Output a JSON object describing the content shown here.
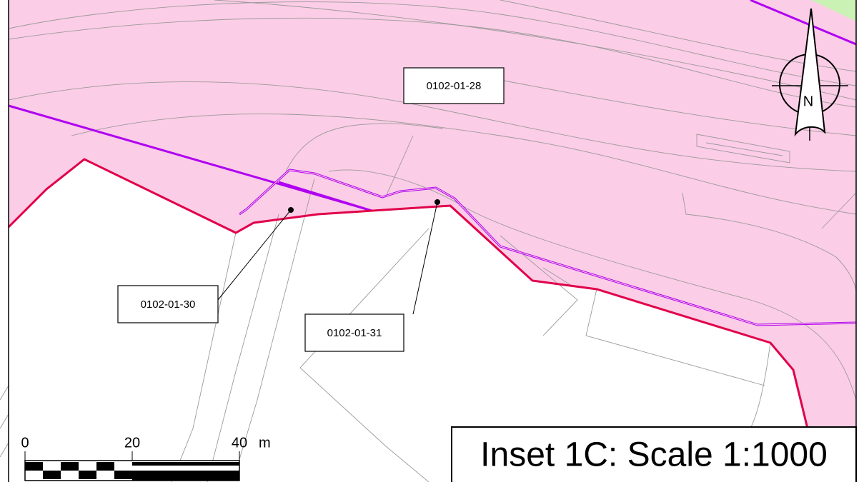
{
  "map": {
    "parcels": [
      {
        "label": "0102-01-28"
      },
      {
        "label": "0102-01-30"
      },
      {
        "label": "0102-01-31"
      }
    ],
    "north_arrow": {
      "label": "N"
    },
    "scale_bar": {
      "ticks": [
        0,
        20,
        40
      ],
      "unit": "m"
    },
    "inset_title": "Inset 1C: Scale 1:1000"
  }
}
